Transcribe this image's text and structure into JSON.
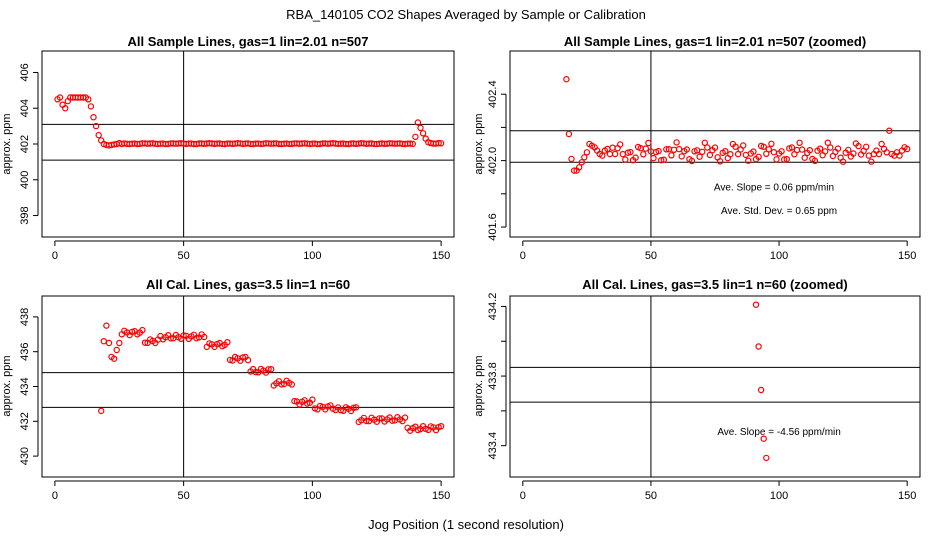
{
  "figure": {
    "suptitle": "RBA_140105  CO2 Shapes Averaged by Sample or Calibration",
    "xlabel": "Jog Position (1 second resolution)"
  },
  "colors": {
    "points": "#ff0000",
    "axes": "#000000"
  },
  "chart_data": [
    {
      "type": "scatter",
      "title": "All Sample Lines, gas=1 lin=2.01 n=507",
      "ylabel": "approx. ppm",
      "xlim": [
        -5,
        155
      ],
      "ylim": [
        396.8,
        407.2
      ],
      "xticks": [
        0,
        50,
        100,
        150
      ],
      "yticks": [
        398,
        400,
        402,
        404,
        406
      ],
      "ytick_labels": [
        "398",
        "400",
        "402",
        "404",
        "406"
      ],
      "hlines": [
        403.1,
        401.1
      ],
      "vlines": [
        50
      ],
      "annotations": [],
      "y_series": [
        404.5,
        404.6,
        404.2,
        404.0,
        404.4,
        404.6,
        404.6,
        404.6,
        404.6,
        404.6,
        404.6,
        404.6,
        404.5,
        404.1,
        403.5,
        403.0,
        402.5,
        402.2,
        402.0,
        401.95,
        401.92,
        401.95,
        401.98,
        402.0,
        402.05,
        402.0
      ],
      "y_start": 1,
      "series2": {
        "x": [
          140,
          141,
          142,
          143,
          144,
          145,
          146,
          147,
          148,
          149,
          150
        ],
        "y": [
          402.4,
          403.2,
          402.9,
          402.6,
          402.3,
          402.1,
          402.05,
          402.02,
          402.02,
          402.05,
          402.04
        ]
      },
      "plateau": {
        "x_from": 27,
        "x_to": 139,
        "y": 402.02
      }
    },
    {
      "type": "scatter",
      "title": "All Sample Lines, gas=1 lin=2.01 n=507 (zoomed)",
      "ylabel": "approx. ppm",
      "xlim": [
        -5,
        155
      ],
      "ylim": [
        401.54,
        402.66
      ],
      "xticks": [
        0,
        50,
        100,
        150
      ],
      "yticks": [
        401.6,
        402.0,
        402.4
      ],
      "ytick_labels": [
        "401.6",
        "402.0",
        "402.4"
      ],
      "hlines": [
        402.18,
        401.99
      ],
      "vlines": [
        50
      ],
      "annotations": [
        {
          "text": "Ave. Slope =  0.06  ppm/min",
          "x": 98,
          "y": 401.82
        },
        {
          "text": "Ave. Std. Dev. =  0.65  ppm",
          "x": 100,
          "y": 401.68
        }
      ],
      "y_series": [
        402.49,
        402.16,
        402.01,
        401.94,
        401.94,
        401.96,
        401.99,
        402.02,
        402.05,
        402.1,
        402.09,
        402.08,
        402.06,
        402.04,
        402.03,
        402.06,
        402.07,
        402.04
      ],
      "y_start": 17,
      "series2": {
        "x": [
          138,
          139,
          140,
          141,
          142,
          143,
          144,
          145,
          146,
          147,
          148,
          149,
          150
        ],
        "y": [
          402.06,
          402.04,
          402.1,
          402.07,
          402.05,
          402.18,
          402.04,
          402.03,
          402.05,
          402.03,
          402.06,
          402.08,
          402.07
        ]
      },
      "plateau": {
        "x_from": 35,
        "x_to": 137,
        "y": 402.05
      }
    },
    {
      "type": "scatter",
      "title": "All Cal. Lines, gas=3.5 lin=1 n=60",
      "ylabel": "approx. ppm",
      "xlim": [
        -5,
        155
      ],
      "ylim": [
        428.8,
        439.2
      ],
      "xticks": [
        0,
        50,
        100,
        150
      ],
      "yticks": [
        430,
        432,
        434,
        436,
        438
      ],
      "ytick_labels": [
        "430",
        "432",
        "434",
        "436",
        "438"
      ],
      "hlines": [
        434.8,
        432.8
      ],
      "vlines": [
        50
      ],
      "annotations": [],
      "y_series": [
        432.6,
        436.6,
        437.5,
        436.5,
        435.7,
        435.6,
        436.1,
        436.5,
        437.0,
        437.2,
        437.1
      ],
      "y_start": 18,
      "steps": [
        {
          "x_from": 29,
          "x_to": 34,
          "y": 437.1
        },
        {
          "x_from": 35,
          "x_to": 40,
          "y": 436.6
        },
        {
          "x_from": 41,
          "x_to": 58,
          "y": 436.85
        },
        {
          "x_from": 59,
          "x_to": 67,
          "y": 436.4
        },
        {
          "x_from": 68,
          "x_to": 75,
          "y": 435.6
        },
        {
          "x_from": 76,
          "x_to": 84,
          "y": 434.9
        },
        {
          "x_from": 85,
          "x_to": 92,
          "y": 434.2
        },
        {
          "x_from": 93,
          "x_to": 100,
          "y": 433.1
        },
        {
          "x_from": 101,
          "x_to": 108,
          "y": 432.8
        },
        {
          "x_from": 109,
          "x_to": 117,
          "y": 432.7
        },
        {
          "x_from": 118,
          "x_to": 136,
          "y": 432.1
        },
        {
          "x_from": 137,
          "x_to": 150,
          "y": 431.6
        }
      ]
    },
    {
      "type": "scatter",
      "title": "All Cal. Lines, gas=3.5 lin=1 n=60 (zoomed)",
      "ylabel": "approx. ppm",
      "xlim": [
        -5,
        155
      ],
      "ylim": [
        433.22,
        434.26
      ],
      "xticks": [
        0,
        50,
        100,
        150
      ],
      "yticks": [
        433.4,
        433.8,
        434.2
      ],
      "ytick_labels": [
        "433.4",
        "433.8",
        "434.2"
      ],
      "hlines": [
        433.85,
        433.65
      ],
      "vlines": [
        50
      ],
      "annotations": [
        {
          "text": "Ave. Slope = -4.56  ppm/min",
          "x": 100,
          "y": 433.46
        }
      ],
      "x": [
        91,
        92,
        93,
        94,
        95
      ],
      "y": [
        434.21,
        433.97,
        433.72,
        433.44,
        433.33
      ]
    }
  ]
}
